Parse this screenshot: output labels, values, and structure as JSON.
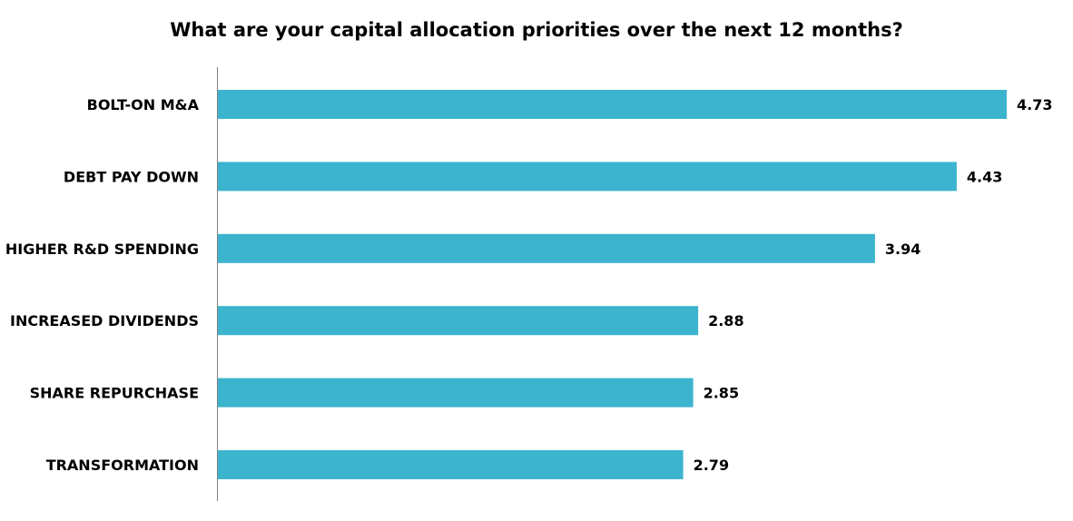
{
  "chart_data": {
    "type": "bar",
    "orientation": "horizontal",
    "title": "What are your capital allocation priorities over the next 12 months?",
    "categories": [
      "BOLT-ON M&A",
      "DEBT PAY DOWN",
      "HIGHER R&D SPENDING",
      "INCREASED DIVIDENDS",
      "SHARE REPURCHASE",
      "TRANSFORMATION"
    ],
    "values": [
      4.73,
      4.43,
      3.94,
      2.88,
      2.85,
      2.79
    ],
    "value_labels": [
      "4.73",
      "4.43",
      "3.94",
      "2.88",
      "2.85",
      "2.79"
    ],
    "xlim": [
      0,
      4.73
    ],
    "grid": false,
    "legend": "none",
    "bar_color": "#3CB4CE"
  }
}
